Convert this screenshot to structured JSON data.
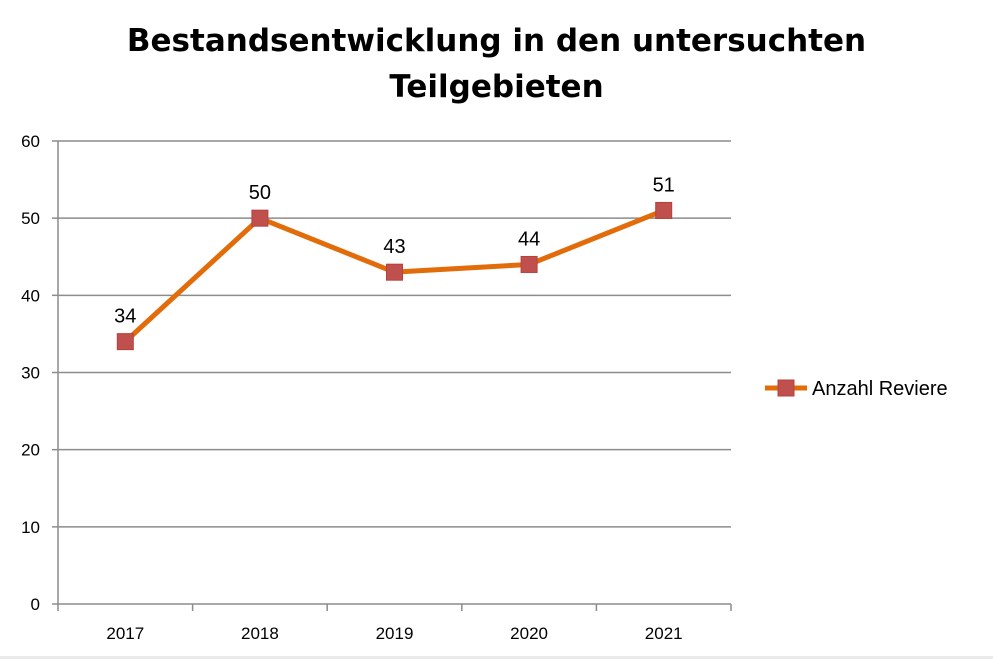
{
  "chart_data": {
    "type": "line",
    "title_lines": [
      "Bestandsentwicklung in den untersuchten",
      "Teilgebieten"
    ],
    "categories": [
      "2017",
      "2018",
      "2019",
      "2020",
      "2021"
    ],
    "series": [
      {
        "name": "Anzahl Reviere",
        "values": [
          34,
          50,
          43,
          44,
          51
        ],
        "color": "#E36C0A",
        "marker_color": "#C0504D"
      }
    ],
    "data_labels": [
      "34",
      "50",
      "43",
      "44",
      "51"
    ],
    "ylim": [
      0,
      60
    ],
    "yticks": [
      0,
      10,
      20,
      30,
      40,
      50,
      60
    ],
    "grid": true,
    "legend_position": "right"
  }
}
